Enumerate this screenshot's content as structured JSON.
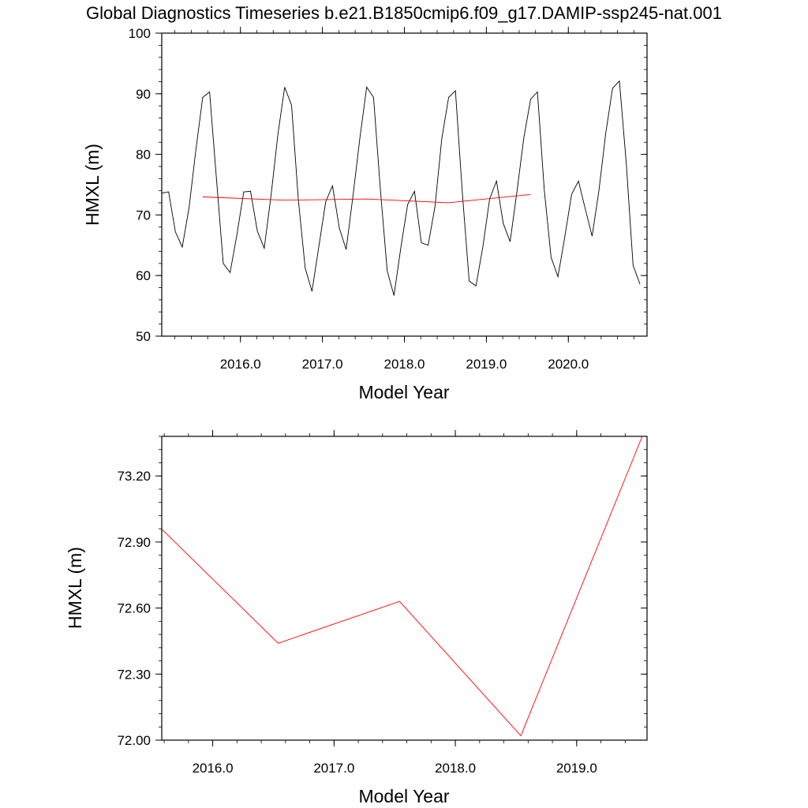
{
  "title": "Global Diagnostics Timeseries b.e21.B1850cmip6.f09_g17.DAMIP-ssp245-nat.001",
  "chart_data": [
    {
      "type": "line",
      "xlabel": "Model Year",
      "ylabel": "HMXL (m)",
      "xlim": [
        2015.04,
        2020.96
      ],
      "ylim": [
        50,
        100
      ],
      "x_ticks": [
        2016.0,
        2017.0,
        2018.0,
        2019.0,
        2020.0
      ],
      "x_tick_labels": [
        "2016.0",
        "2017.0",
        "2018.0",
        "2019.0",
        "2020.0"
      ],
      "y_ticks": [
        50,
        60,
        70,
        80,
        90,
        100
      ],
      "y_tick_labels": [
        "50",
        "60",
        "70",
        "80",
        "90",
        "100"
      ],
      "grid": false,
      "series": [
        {
          "color": "#000000",
          "x_start": 2015.04,
          "x_step": 0.08333,
          "values": [
            73.6,
            73.8,
            67.2,
            64.7,
            71.2,
            80.8,
            89.4,
            90.3,
            76.0,
            62.0,
            60.5,
            66.7,
            73.8,
            73.9,
            67.3,
            64.5,
            73.2,
            83.3,
            91.1,
            88.1,
            72.5,
            61.2,
            57.4,
            64.8,
            72.2,
            74.8,
            67.8,
            64.3,
            73.2,
            82.6,
            91.1,
            89.4,
            74.3,
            60.8,
            56.7,
            64.6,
            71.7,
            73.9,
            65.4,
            65.0,
            71.4,
            82.6,
            89.4,
            90.5,
            73.7,
            59.1,
            58.3,
            64.7,
            72.6,
            75.6,
            68.6,
            65.6,
            73.9,
            82.7,
            89.1,
            90.3,
            74.1,
            63.0,
            59.8,
            66.3,
            73.4,
            75.6,
            71.0,
            66.5,
            74.0,
            83.5,
            90.9,
            92.1,
            78.5,
            61.7,
            58.6
          ]
        },
        {
          "color": "#ff0000",
          "x": [
            2015.54,
            2016.54,
            2017.54,
            2018.54,
            2019.54
          ],
          "values": [
            72.98,
            72.44,
            72.63,
            72.02,
            73.38
          ]
        }
      ]
    },
    {
      "type": "line",
      "xlabel": "Model Year",
      "ylabel": "HMXL (m)",
      "xlim": [
        2015.58,
        2019.58
      ],
      "ylim": [
        72.0,
        73.38
      ],
      "x_ticks": [
        2016.0,
        2017.0,
        2018.0,
        2019.0
      ],
      "x_tick_labels": [
        "2016.0",
        "2017.0",
        "2018.0",
        "2019.0"
      ],
      "y_ticks": [
        72.0,
        72.3,
        72.6,
        72.9,
        73.2
      ],
      "y_tick_labels": [
        "72.00",
        "72.30",
        "72.60",
        "72.90",
        "73.20"
      ],
      "grid": false,
      "series": [
        {
          "color": "#ff0000",
          "x": [
            2015.54,
            2016.54,
            2017.54,
            2018.54,
            2019.54
          ],
          "values": [
            72.98,
            72.44,
            72.63,
            72.02,
            73.38
          ]
        }
      ]
    }
  ]
}
